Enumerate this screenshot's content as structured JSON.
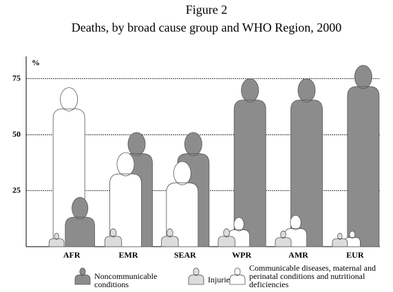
{
  "chart_data": {
    "type": "pictograph",
    "title": "Figure 2",
    "subtitle": "Deaths, by broad cause group and WHO Region, 2000",
    "y_label": "%",
    "categories": [
      "AFR",
      "EMR",
      "SEAR",
      "WPR",
      "AMR",
      "EUR"
    ],
    "series": [
      {
        "name": "Noncommunicable conditions",
        "color": "#8c8c8c",
        "values": [
          22,
          51,
          51,
          75,
          75,
          81
        ]
      },
      {
        "name": "Injuries",
        "color": "#dcdcdc",
        "values": [
          6,
          8,
          8,
          8,
          7,
          6
        ]
      },
      {
        "name": "Communicable diseases, maternal and perinatal conditions and nutritional deficiencies",
        "color": "#ffffff",
        "values": [
          71,
          42,
          38,
          13,
          14,
          7
        ]
      }
    ],
    "ylim": [
      0,
      85
    ],
    "yticks": [
      25,
      50,
      75
    ],
    "grid": true
  }
}
